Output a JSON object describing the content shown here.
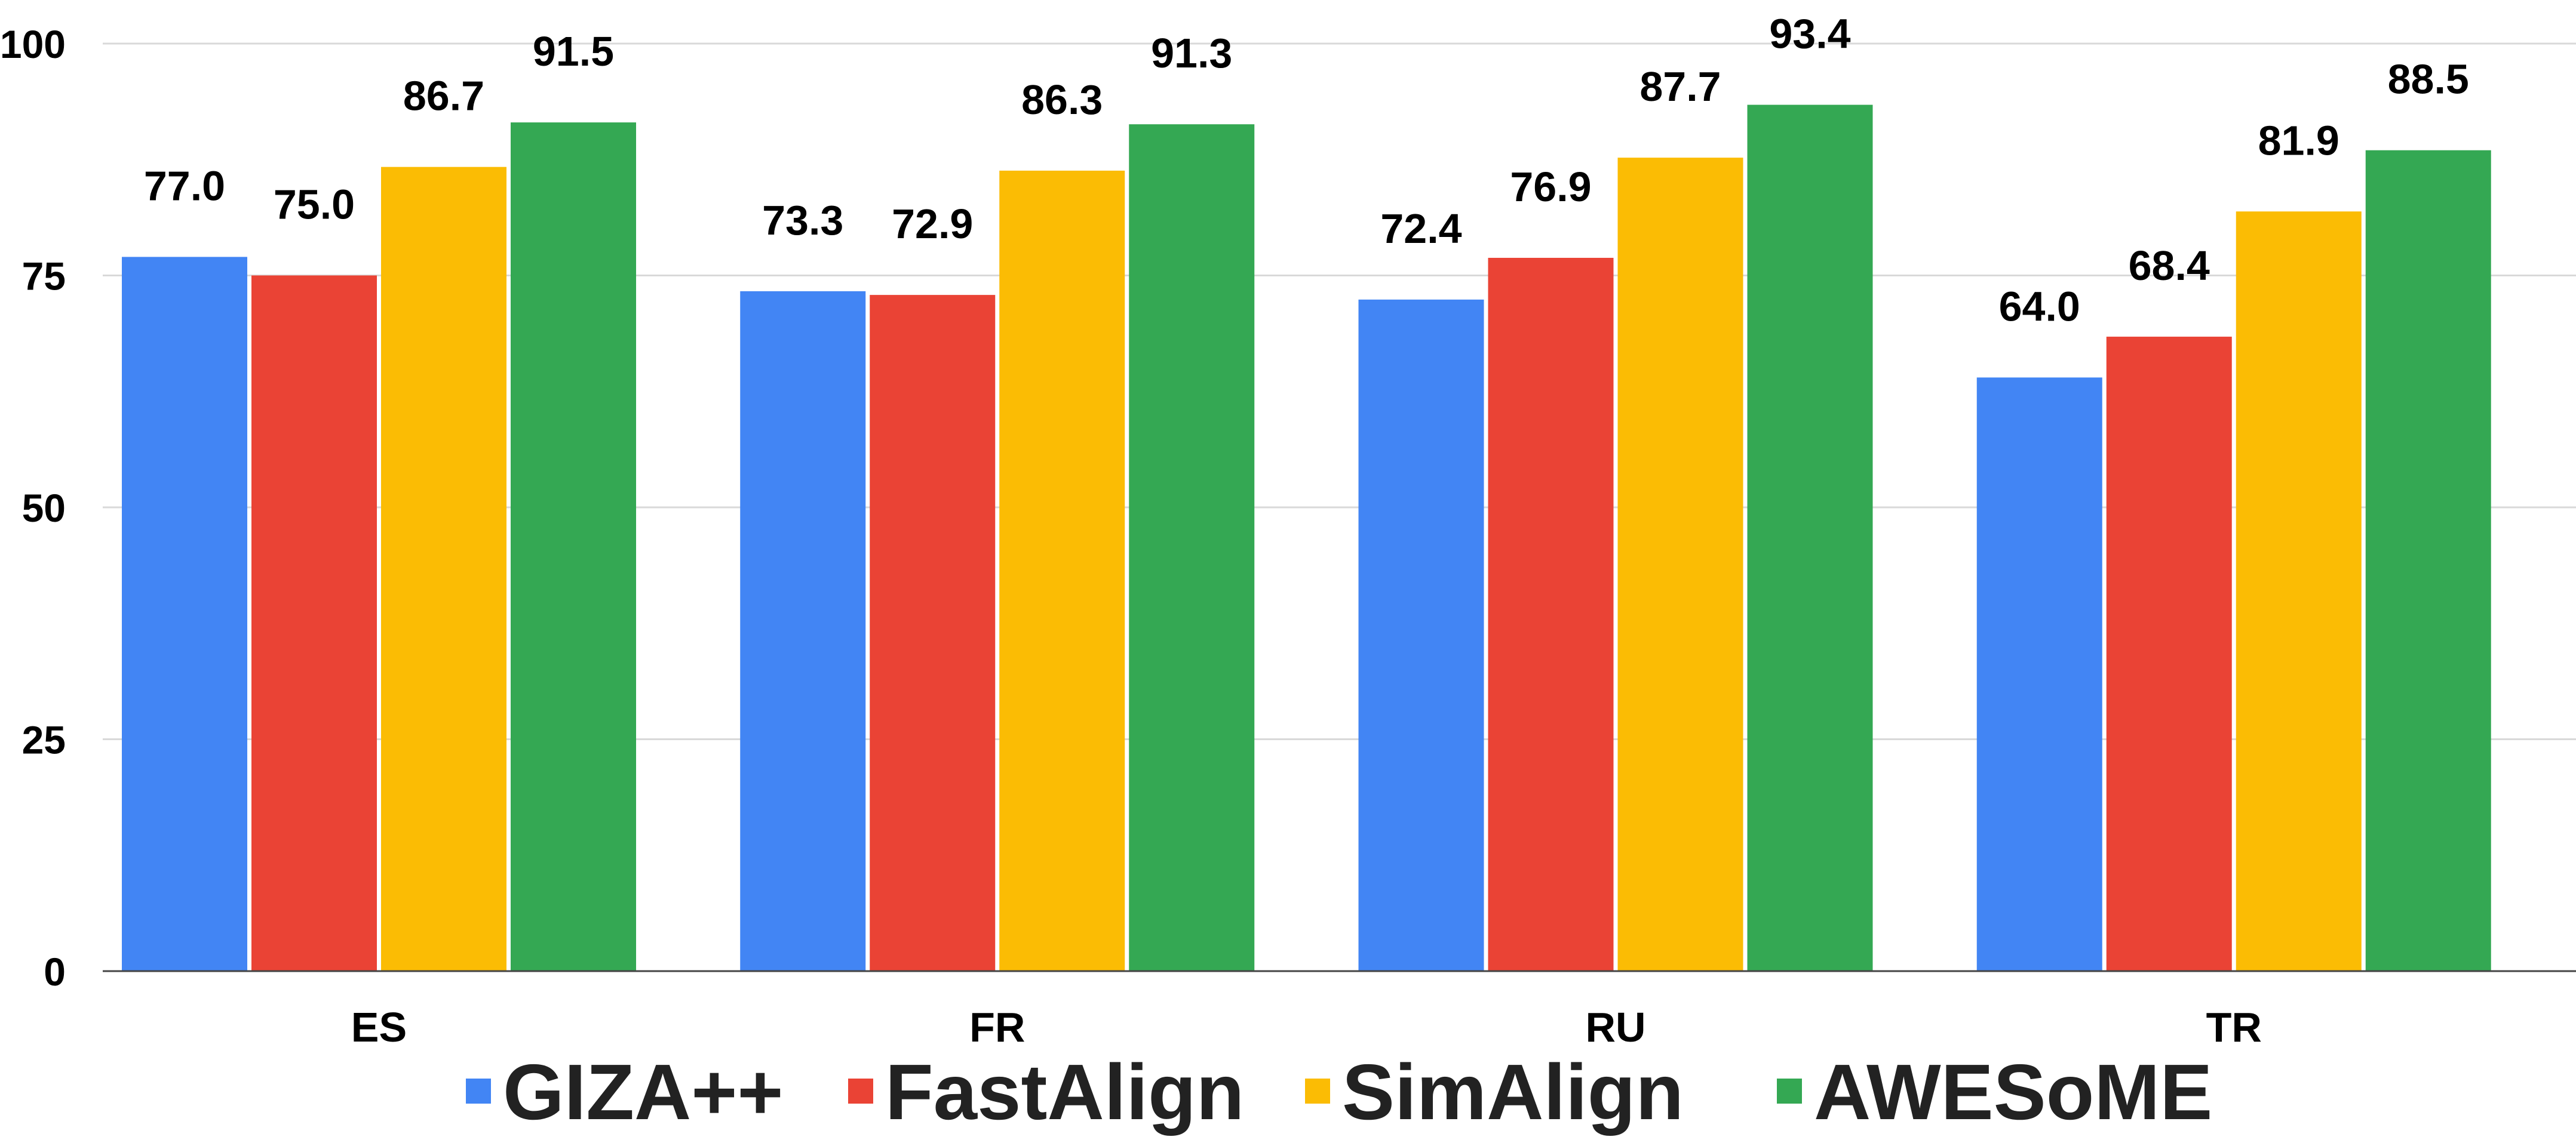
{
  "chart_data": {
    "type": "bar",
    "categories": [
      "ES",
      "FR",
      "RU",
      "TR"
    ],
    "series": [
      {
        "name": "GIZA++",
        "color": "#4285F4",
        "values": [
          77.0,
          73.3,
          72.4,
          64.0
        ]
      },
      {
        "name": "FastAlign",
        "color": "#EA4335",
        "values": [
          75.0,
          72.9,
          76.9,
          68.4
        ]
      },
      {
        "name": "SimAlign",
        "color": "#FBBC04",
        "values": [
          86.7,
          86.3,
          87.7,
          81.9
        ]
      },
      {
        "name": "AWESoME",
        "color": "#34A853",
        "values": [
          91.5,
          91.3,
          93.4,
          88.5
        ]
      }
    ],
    "value_labels": [
      [
        "77.0",
        "73.3",
        "72.4",
        "64.0"
      ],
      [
        "75.0",
        "72.9",
        "76.9",
        "68.4"
      ],
      [
        "86.7",
        "86.3",
        "87.7",
        "81.9"
      ],
      [
        "91.5",
        "91.3",
        "93.4",
        "88.5"
      ]
    ],
    "y_ticks": [
      0,
      25,
      50,
      75,
      100
    ],
    "y_tick_labels": [
      "0",
      "25",
      "50",
      "75",
      "100"
    ],
    "ylim": [
      0,
      100
    ],
    "title": "",
    "xlabel": "",
    "ylabel": "",
    "grid": true,
    "legend_position": "bottom"
  }
}
